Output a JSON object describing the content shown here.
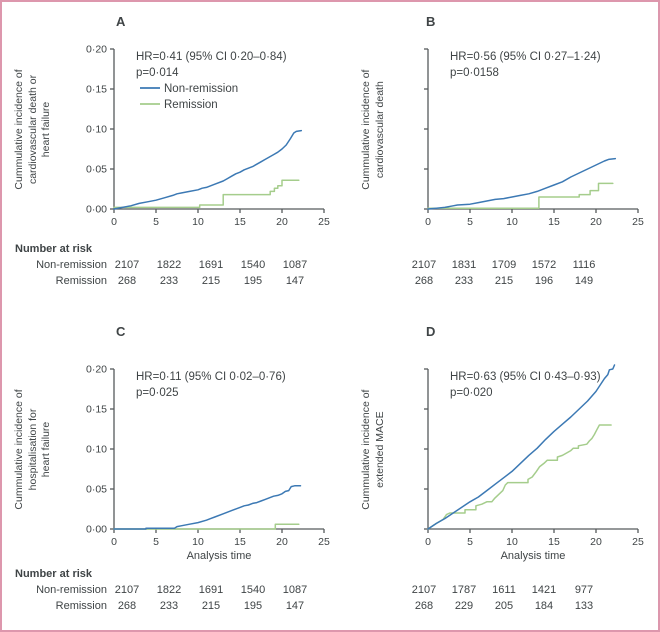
{
  "figure": {
    "border_color": "#dd97ad",
    "axis_color": "#565a5c",
    "text_color": "#3f4446",
    "x_axis_label": "Analysis time",
    "number_at_risk_heading": "Number at risk",
    "group_colors": {
      "non_remission": "#3c79b4",
      "remission": "#a5cd8c"
    }
  },
  "chart_data": [
    {
      "type": "line",
      "panel": "A",
      "ylabel": "Cummulative incidence of cardiovascular death or heart failure",
      "ylabel_display": "Cummulative incidence of\ncardiovascular death or\nheart failure",
      "xlabel": "",
      "xlim": [
        0,
        25
      ],
      "ylim": [
        0,
        0.2
      ],
      "xticks": [
        0,
        5,
        10,
        15,
        20,
        25
      ],
      "yticks": [
        0,
        0.05,
        0.1,
        0.15,
        0.2
      ],
      "ytick_labels": [
        "0·00",
        "0·05",
        "0·10",
        "0·15",
        "0·20"
      ],
      "show_ytick_labels": true,
      "grid": false,
      "annotation": [
        "HR=0·41 (95% CI 0·20–0·84)",
        "p=0·014"
      ],
      "legend": {
        "position": "upper-left",
        "items": [
          {
            "label": "Non-remission",
            "color": "#3c79b4"
          },
          {
            "label": "Remission",
            "color": "#a5cd8c"
          }
        ]
      },
      "series": [
        {
          "name": "Non-remission",
          "color": "#3c79b4",
          "points": [
            [
              0,
              0
            ],
            [
              1,
              0.002
            ],
            [
              2,
              0.004
            ],
            [
              3,
              0.007
            ],
            [
              4,
              0.009
            ],
            [
              5,
              0.011
            ],
            [
              6,
              0.014
            ],
            [
              7,
              0.017
            ],
            [
              7.5,
              0.019
            ],
            [
              8,
              0.02
            ],
            [
              9,
              0.022
            ],
            [
              10,
              0.024
            ],
            [
              10.5,
              0.026
            ],
            [
              11,
              0.027
            ],
            [
              12,
              0.031
            ],
            [
              13,
              0.035
            ],
            [
              13.5,
              0.038
            ],
            [
              14,
              0.041
            ],
            [
              14.5,
              0.044
            ],
            [
              15,
              0.046
            ],
            [
              15.5,
              0.049
            ],
            [
              16,
              0.051
            ],
            [
              16.5,
              0.053
            ],
            [
              17,
              0.056
            ],
            [
              17.5,
              0.059
            ],
            [
              18,
              0.062
            ],
            [
              18.5,
              0.065
            ],
            [
              19,
              0.068
            ],
            [
              19.5,
              0.071
            ],
            [
              20,
              0.075
            ],
            [
              20.5,
              0.08
            ],
            [
              21,
              0.088
            ],
            [
              21.4,
              0.095
            ],
            [
              21.7,
              0.097
            ],
            [
              22.3,
              0.098
            ]
          ]
        },
        {
          "name": "Remission",
          "color": "#a5cd8c",
          "points": [
            [
              0,
              0.002
            ],
            [
              10.2,
              0.002
            ],
            [
              10.2,
              0.005
            ],
            [
              13,
              0.005
            ],
            [
              13,
              0.018
            ],
            [
              18.6,
              0.018
            ],
            [
              18.6,
              0.022
            ],
            [
              19.1,
              0.022
            ],
            [
              19.1,
              0.026
            ],
            [
              19.5,
              0.026
            ],
            [
              19.5,
              0.029
            ],
            [
              20,
              0.029
            ],
            [
              20,
              0.036
            ],
            [
              22,
              0.036
            ]
          ]
        }
      ]
    },
    {
      "type": "line",
      "panel": "B",
      "ylabel": "Cummulative incidence of cardiovascular death",
      "ylabel_display": "Cummulative incidence of\ncardiovascular death",
      "xlabel": "",
      "xlim": [
        0,
        25
      ],
      "ylim": [
        0,
        0.2
      ],
      "xticks": [
        0,
        5,
        10,
        15,
        20,
        25
      ],
      "yticks": [
        0,
        0.05,
        0.1,
        0.15,
        0.2
      ],
      "ytick_labels": [],
      "show_ytick_labels": false,
      "grid": false,
      "annotation": [
        "HR=0·56 (95% CI 0·27–1·24)",
        "p=0·0158"
      ],
      "legend": null,
      "series": [
        {
          "name": "Non-remission",
          "color": "#3c79b4",
          "points": [
            [
              0,
              0
            ],
            [
              1,
              0.001
            ],
            [
              2,
              0.002
            ],
            [
              3,
              0.004
            ],
            [
              3.5,
              0.005
            ],
            [
              5,
              0.006
            ],
            [
              6,
              0.008
            ],
            [
              7,
              0.01
            ],
            [
              8,
              0.012
            ],
            [
              9,
              0.013
            ],
            [
              10,
              0.015
            ],
            [
              11,
              0.017
            ],
            [
              12,
              0.019
            ],
            [
              13,
              0.022
            ],
            [
              14,
              0.026
            ],
            [
              15,
              0.03
            ],
            [
              16,
              0.034
            ],
            [
              17,
              0.04
            ],
            [
              18,
              0.045
            ],
            [
              19,
              0.05
            ],
            [
              20,
              0.055
            ],
            [
              21,
              0.06
            ],
            [
              21.5,
              0.062
            ],
            [
              22.3,
              0.063
            ]
          ]
        },
        {
          "name": "Remission",
          "color": "#a5cd8c",
          "points": [
            [
              0,
              0.001
            ],
            [
              13.2,
              0.001
            ],
            [
              13.2,
              0.015
            ],
            [
              18,
              0.015
            ],
            [
              18,
              0.018
            ],
            [
              19.3,
              0.018
            ],
            [
              19.3,
              0.023
            ],
            [
              20.3,
              0.023
            ],
            [
              20.3,
              0.032
            ],
            [
              22,
              0.032
            ]
          ]
        }
      ]
    },
    {
      "type": "line",
      "panel": "C",
      "ylabel": "Cummulative incidence of hospitalisation for heart failure",
      "ylabel_display": "Cummulative incidence of\nhospitalisation for\nheart failure",
      "xlabel": "Analysis time",
      "xlim": [
        0,
        25
      ],
      "ylim": [
        0,
        0.2
      ],
      "xticks": [
        0,
        5,
        10,
        15,
        20,
        25
      ],
      "yticks": [
        0,
        0.05,
        0.1,
        0.15,
        0.2
      ],
      "ytick_labels": [
        "0·00",
        "0·05",
        "0·10",
        "0·15",
        "0·20"
      ],
      "show_ytick_labels": true,
      "grid": false,
      "annotation": [
        "HR=0·11 (95% CI 0·02–0·76)",
        "p=0·025"
      ],
      "legend": null,
      "series": [
        {
          "name": "Non-remission",
          "color": "#3c79b4",
          "points": [
            [
              0,
              0
            ],
            [
              3.8,
              0
            ],
            [
              3.8,
              0.001
            ],
            [
              7.2,
              0.001
            ],
            [
              7.5,
              0.003
            ],
            [
              8,
              0.004
            ],
            [
              9,
              0.006
            ],
            [
              10,
              0.008
            ],
            [
              11,
              0.011
            ],
            [
              11.5,
              0.013
            ],
            [
              12,
              0.015
            ],
            [
              13,
              0.019
            ],
            [
              14,
              0.023
            ],
            [
              15,
              0.027
            ],
            [
              15.5,
              0.029
            ],
            [
              16,
              0.03
            ],
            [
              16.5,
              0.032
            ],
            [
              17,
              0.033
            ],
            [
              17.5,
              0.035
            ],
            [
              18,
              0.037
            ],
            [
              18.5,
              0.039
            ],
            [
              19,
              0.041
            ],
            [
              19.5,
              0.042
            ],
            [
              20,
              0.044
            ],
            [
              20.4,
              0.047
            ],
            [
              20.8,
              0.048
            ],
            [
              21.1,
              0.053
            ],
            [
              21.5,
              0.054
            ],
            [
              22.2,
              0.054
            ]
          ]
        },
        {
          "name": "Remission",
          "color": "#a5cd8c",
          "points": [
            [
              0,
              0
            ],
            [
              19.2,
              0
            ],
            [
              19.2,
              0.006
            ],
            [
              22,
              0.006
            ]
          ]
        }
      ]
    },
    {
      "type": "line",
      "panel": "D",
      "ylabel": "Cummulative incidence of extended MACE",
      "ylabel_display": "Cummulative incidence of\nextended MACE",
      "xlabel": "Analysis time",
      "xlim": [
        0,
        25
      ],
      "ylim": [
        0,
        0.2
      ],
      "xticks": [
        0,
        5,
        10,
        15,
        20,
        25
      ],
      "yticks": [
        0,
        0.05,
        0.1,
        0.15,
        0.2
      ],
      "ytick_labels": [],
      "show_ytick_labels": false,
      "grid": false,
      "annotation": [
        "HR=0·63 (95% CI 0·43–0·93)",
        "p=0·020"
      ],
      "legend": null,
      "series": [
        {
          "name": "Non-remission",
          "color": "#3c79b4",
          "points": [
            [
              0,
              0
            ],
            [
              1,
              0.007
            ],
            [
              2,
              0.013
            ],
            [
              3,
              0.02
            ],
            [
              4,
              0.027
            ],
            [
              5,
              0.034
            ],
            [
              6,
              0.04
            ],
            [
              7,
              0.048
            ],
            [
              8,
              0.056
            ],
            [
              9,
              0.064
            ],
            [
              10,
              0.072
            ],
            [
              11,
              0.082
            ],
            [
              12,
              0.092
            ],
            [
              13,
              0.101
            ],
            [
              14,
              0.112
            ],
            [
              15,
              0.122
            ],
            [
              16,
              0.131
            ],
            [
              17,
              0.14
            ],
            [
              18,
              0.15
            ],
            [
              19,
              0.16
            ],
            [
              20,
              0.172
            ],
            [
              20.5,
              0.18
            ],
            [
              21,
              0.188
            ],
            [
              21.4,
              0.193
            ],
            [
              21.6,
              0.199
            ],
            [
              22,
              0.2
            ],
            [
              22.2,
              0.205
            ]
          ]
        },
        {
          "name": "Remission",
          "color": "#a5cd8c",
          "points": [
            [
              0,
              0
            ],
            [
              1,
              0.007
            ],
            [
              1.8,
              0.012
            ],
            [
              2.2,
              0.018
            ],
            [
              2.6,
              0.02
            ],
            [
              4.4,
              0.02
            ],
            [
              4.4,
              0.024
            ],
            [
              5.7,
              0.024
            ],
            [
              5.7,
              0.029
            ],
            [
              6.4,
              0.031
            ],
            [
              7,
              0.034
            ],
            [
              7.6,
              0.034
            ],
            [
              7.9,
              0.038
            ],
            [
              8.4,
              0.043
            ],
            [
              8.9,
              0.048
            ],
            [
              9.2,
              0.055
            ],
            [
              9.5,
              0.058
            ],
            [
              11.9,
              0.058
            ],
            [
              11.9,
              0.062
            ],
            [
              12.4,
              0.065
            ],
            [
              12.9,
              0.072
            ],
            [
              13.3,
              0.078
            ],
            [
              13.8,
              0.082
            ],
            [
              14.2,
              0.086
            ],
            [
              15.4,
              0.086
            ],
            [
              15.4,
              0.09
            ],
            [
              16,
              0.092
            ],
            [
              16.5,
              0.095
            ],
            [
              17,
              0.098
            ],
            [
              17.3,
              0.101
            ],
            [
              17.9,
              0.101
            ],
            [
              17.9,
              0.104
            ],
            [
              18.9,
              0.106
            ],
            [
              19.2,
              0.11
            ],
            [
              19.5,
              0.113
            ],
            [
              19.8,
              0.118
            ],
            [
              20.1,
              0.124
            ],
            [
              20.4,
              0.13
            ],
            [
              21.8,
              0.13
            ]
          ]
        }
      ]
    }
  ],
  "risk_sections": [
    {
      "heading": "Number at risk",
      "row_labels": [
        "Non-remission",
        "Remission"
      ],
      "left_panel": "A",
      "right_panel": "B",
      "left_rows": [
        [
          "2107",
          "1822",
          "1691",
          "1540",
          "1087"
        ],
        [
          "268",
          "233",
          "215",
          "195",
          "147"
        ]
      ],
      "right_rows": [
        [
          "2107",
          "1831",
          "1709",
          "1572",
          "1116"
        ],
        [
          "268",
          "233",
          "215",
          "196",
          "149"
        ]
      ]
    },
    {
      "heading": "Number at risk",
      "row_labels": [
        "Non-remission",
        "Remission"
      ],
      "left_panel": "C",
      "right_panel": "D",
      "left_rows": [
        [
          "2107",
          "1822",
          "1691",
          "1540",
          "1087"
        ],
        [
          "268",
          "233",
          "215",
          "195",
          "147"
        ]
      ],
      "right_rows": [
        [
          "2107",
          "1787",
          "1611",
          "1421",
          "977"
        ],
        [
          "268",
          "229",
          "205",
          "184",
          "133"
        ]
      ]
    }
  ]
}
